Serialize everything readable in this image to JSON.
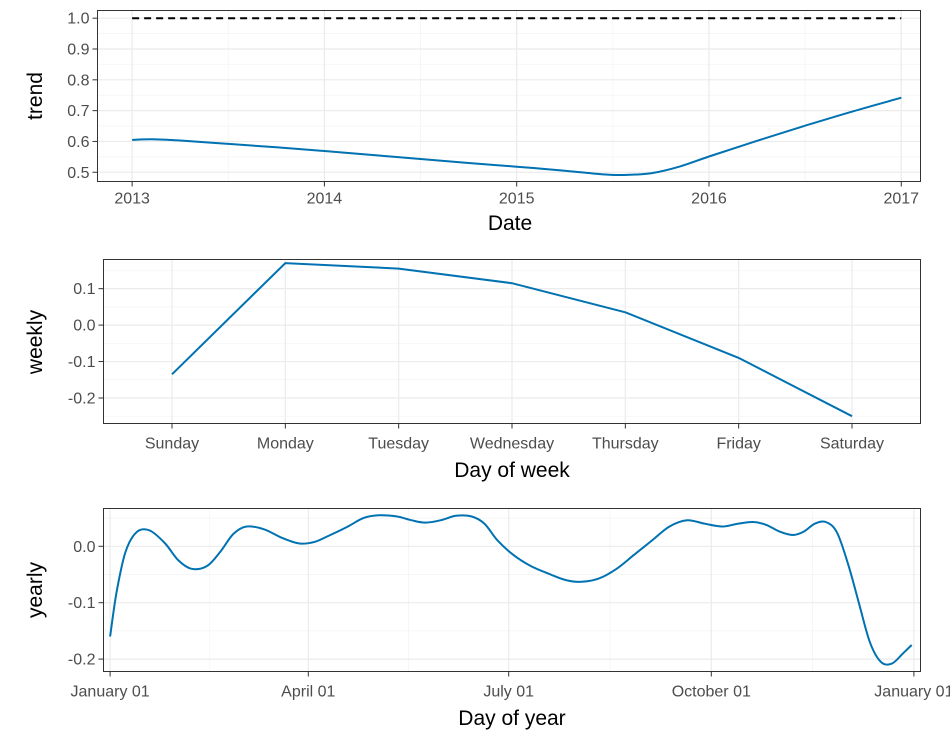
{
  "colors": {
    "line": "#0072B2",
    "cap_line": "#000000",
    "panel_border": "#333333",
    "grid_major": "#ebebeb",
    "grid_minor": "#f3f3f3",
    "tick_text": "#4d4d4d"
  },
  "chart_data": [
    {
      "type": "line",
      "xlabel": "Date",
      "ylabel": "trend",
      "x_ticks": [
        "2013",
        "2014",
        "2015",
        "2016",
        "2017"
      ],
      "y_ticks": [
        "0.5",
        "0.6",
        "0.7",
        "0.8",
        "0.9",
        "1.0"
      ],
      "xlim": [
        2012.82,
        2017.1
      ],
      "ylim": [
        0.47,
        1.025
      ],
      "grid": true,
      "series": [
        {
          "x": [
            2013.0,
            2013.1,
            2013.25,
            2013.5,
            2013.75,
            2014.0,
            2014.25,
            2014.5,
            2014.75,
            2015.0,
            2015.25,
            2015.45,
            2015.55,
            2015.7,
            2015.85,
            2016.0,
            2016.25,
            2016.5,
            2016.75,
            2017.0
          ],
          "y": [
            0.605,
            0.607,
            0.603,
            0.592,
            0.581,
            0.569,
            0.556,
            0.543,
            0.53,
            0.518,
            0.505,
            0.493,
            0.491,
            0.497,
            0.519,
            0.551,
            0.602,
            0.651,
            0.698,
            0.742
          ]
        }
      ],
      "hline": {
        "y": 1.0,
        "style": "dashed",
        "x_range": [
          2013.0,
          2017.0
        ]
      }
    },
    {
      "type": "line",
      "xlabel": "Day of week",
      "ylabel": "weekly",
      "categories": [
        "Sunday",
        "Monday",
        "Tuesday",
        "Wednesday",
        "Thursday",
        "Friday",
        "Saturday"
      ],
      "y_ticks": [
        "-0.2",
        "-0.1",
        "0.0",
        "0.1"
      ],
      "ylim": [
        -0.27,
        0.18
      ],
      "grid": true,
      "series": [
        {
          "values": [
            -0.135,
            0.17,
            0.155,
            0.115,
            0.035,
            -0.09,
            -0.25
          ]
        }
      ]
    },
    {
      "type": "line",
      "xlabel": "Day of year",
      "ylabel": "yearly",
      "x_ticks": [
        "January 01",
        "April 01",
        "July 01",
        "October 01",
        "January 01"
      ],
      "y_ticks": [
        "-0.2",
        "-0.1",
        "0.0"
      ],
      "ylim": [
        -0.222,
        0.067
      ],
      "grid": true,
      "series": [
        {
          "day": [
            0,
            3,
            7,
            12,
            18,
            25,
            31,
            37,
            44,
            50,
            56,
            62,
            70,
            78,
            86,
            93,
            100,
            108,
            115,
            122,
            130,
            137,
            143,
            150,
            157,
            164,
            170,
            176,
            183,
            191,
            200,
            207,
            214,
            222,
            230,
            238,
            246,
            254,
            262,
            270,
            278,
            285,
            292,
            298,
            304,
            310,
            315,
            320,
            325,
            330,
            335,
            340,
            345,
            350,
            355,
            360,
            364
          ],
          "y": [
            -0.16,
            -0.08,
            -0.01,
            0.025,
            0.028,
            0.005,
            -0.025,
            -0.04,
            -0.035,
            -0.01,
            0.022,
            0.035,
            0.03,
            0.015,
            0.005,
            0.008,
            0.02,
            0.035,
            0.05,
            0.055,
            0.053,
            0.046,
            0.042,
            0.046,
            0.054,
            0.053,
            0.04,
            0.01,
            -0.015,
            -0.035,
            -0.05,
            -0.06,
            -0.063,
            -0.057,
            -0.04,
            -0.015,
            0.01,
            0.035,
            0.046,
            0.04,
            0.035,
            0.04,
            0.043,
            0.038,
            0.026,
            0.02,
            0.026,
            0.04,
            0.043,
            0.025,
            -0.03,
            -0.1,
            -0.17,
            -0.205,
            -0.208,
            -0.19,
            -0.175
          ]
        }
      ],
      "xlim_days": [
        -3,
        368
      ]
    }
  ]
}
